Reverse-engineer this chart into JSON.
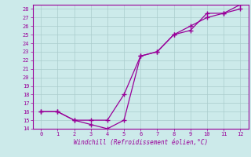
{
  "xlabel": "Windchill (Refroidissement éolien,°C)",
  "background_color": "#cceaea",
  "grid_color": "#aacccc",
  "line_color": "#990099",
  "xlim": [
    -0.5,
    12.5
  ],
  "ylim": [
    14,
    28.5
  ],
  "xticks": [
    0,
    1,
    2,
    3,
    4,
    5,
    6,
    7,
    8,
    9,
    10,
    11,
    12
  ],
  "yticks": [
    14,
    15,
    16,
    17,
    18,
    19,
    20,
    21,
    22,
    23,
    24,
    25,
    26,
    27,
    28
  ],
  "line1_x": [
    0,
    1,
    2,
    3,
    4,
    5,
    6,
    7,
    8,
    9,
    10,
    11,
    12
  ],
  "line1_y": [
    16,
    16,
    15,
    14.5,
    14,
    15,
    22.5,
    23,
    25,
    25.5,
    27.5,
    27.5,
    28
  ],
  "line2_x": [
    0,
    1,
    2,
    3,
    4,
    5,
    6,
    7,
    8,
    9,
    10,
    11,
    12
  ],
  "line2_y": [
    16,
    16,
    15,
    15,
    15,
    18,
    22.5,
    23,
    25,
    26,
    27,
    27.5,
    28.5
  ]
}
